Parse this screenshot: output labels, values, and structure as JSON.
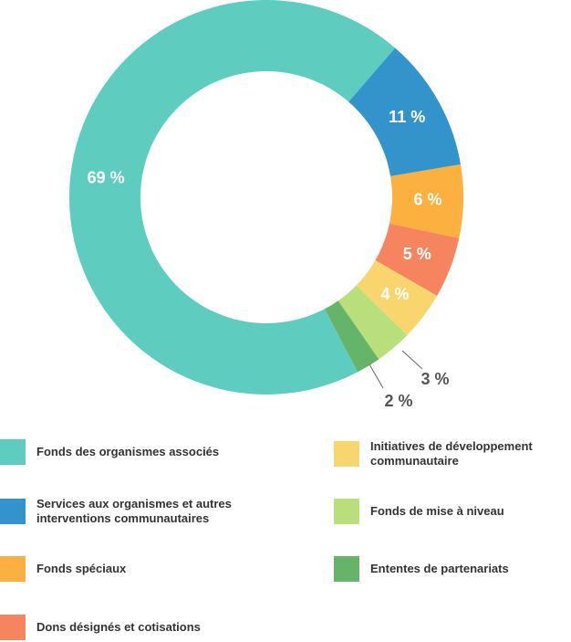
{
  "chart_data": {
    "type": "donut",
    "categories": [
      "Fonds des organismes associés",
      "Services aux organismes et autres interventions communautaires",
      "Fonds spéciaux",
      "Dons désignés et cotisations",
      "Initiatives de développement communautaire",
      "Fonds de mise à niveau",
      "Ententes de partenariats"
    ],
    "values": [
      69,
      11,
      6,
      5,
      4,
      3,
      2
    ],
    "value_labels": [
      "69 %",
      "11 %",
      "6 %",
      "5 %",
      "4 %",
      "3 %",
      "2 %"
    ],
    "colors": [
      "#5ecdc0",
      "#3394cc",
      "#fbb040",
      "#f6855f",
      "#f9d56e",
      "#b8df7c",
      "#66b36a"
    ]
  }
}
